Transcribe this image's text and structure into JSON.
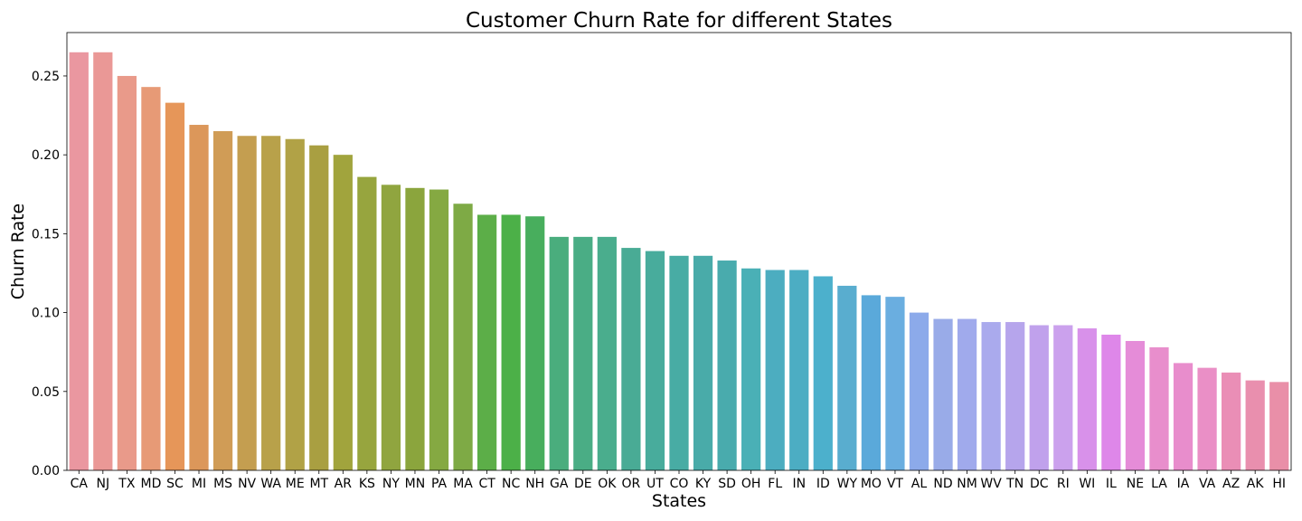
{
  "chart_data": {
    "type": "bar",
    "title": "Customer Churn Rate for different States",
    "xlabel": "States",
    "ylabel": "Churn Rate",
    "ylim": [
      0,
      0.2775
    ],
    "yticks": [
      "0.00",
      "0.05",
      "0.10",
      "0.15",
      "0.20",
      "0.25"
    ],
    "ytick_values": [
      0,
      0.05,
      0.1,
      0.15,
      0.2,
      0.25
    ],
    "grid": false,
    "legend": "none",
    "categories": [
      "CA",
      "NJ",
      "TX",
      "MD",
      "SC",
      "MI",
      "MS",
      "NV",
      "WA",
      "ME",
      "MT",
      "AR",
      "KS",
      "NY",
      "MN",
      "PA",
      "MA",
      "CT",
      "NC",
      "NH",
      "GA",
      "DE",
      "OK",
      "OR",
      "UT",
      "CO",
      "KY",
      "SD",
      "OH",
      "FL",
      "IN",
      "ID",
      "WY",
      "MO",
      "VT",
      "AL",
      "ND",
      "NM",
      "WV",
      "TN",
      "DC",
      "RI",
      "WI",
      "IL",
      "NE",
      "LA",
      "IA",
      "VA",
      "AZ",
      "AK",
      "HI"
    ],
    "values": [
      0.265,
      0.265,
      0.25,
      0.243,
      0.233,
      0.219,
      0.215,
      0.212,
      0.212,
      0.21,
      0.206,
      0.2,
      0.186,
      0.181,
      0.179,
      0.178,
      0.169,
      0.162,
      0.162,
      0.161,
      0.148,
      0.148,
      0.148,
      0.141,
      0.139,
      0.136,
      0.136,
      0.133,
      0.128,
      0.127,
      0.127,
      0.123,
      0.117,
      0.111,
      0.11,
      0.1,
      0.096,
      0.096,
      0.094,
      0.094,
      0.092,
      0.092,
      0.09,
      0.086,
      0.082,
      0.078,
      0.068,
      0.065,
      0.062,
      0.057,
      0.056
    ],
    "colors": [
      "#ea97a0",
      "#ea9896",
      "#e99a8a",
      "#e79a76",
      "#e69659",
      "#dc975a",
      "#d09c56",
      "#c49e50",
      "#b8a14a",
      "#b1a246",
      "#a99f41",
      "#a1a43d",
      "#97a53e",
      "#90a53f",
      "#8ba53d",
      "#85a942",
      "#7eaa45",
      "#5cae48",
      "#4cb048",
      "#48ae5d",
      "#4aad7d",
      "#4aad85",
      "#4aad8d",
      "#49ab95",
      "#48ac9c",
      "#48aca4",
      "#49aba9",
      "#49abad",
      "#4ab0b6",
      "#4cadc0",
      "#4cadc3",
      "#4cb0cc",
      "#59adcf",
      "#5aa9da",
      "#6aaee0",
      "#8caaea",
      "#99abe8",
      "#a0aaec",
      "#aaaaed",
      "#b6a5ec",
      "#c0a1ec",
      "#cba1ed",
      "#d891ea",
      "#de87e9",
      "#e58cd8",
      "#e88ecc",
      "#e88dcc",
      "#ea8fc6",
      "#ea8eb6",
      "#e98fae",
      "#e98fa8"
    ]
  }
}
